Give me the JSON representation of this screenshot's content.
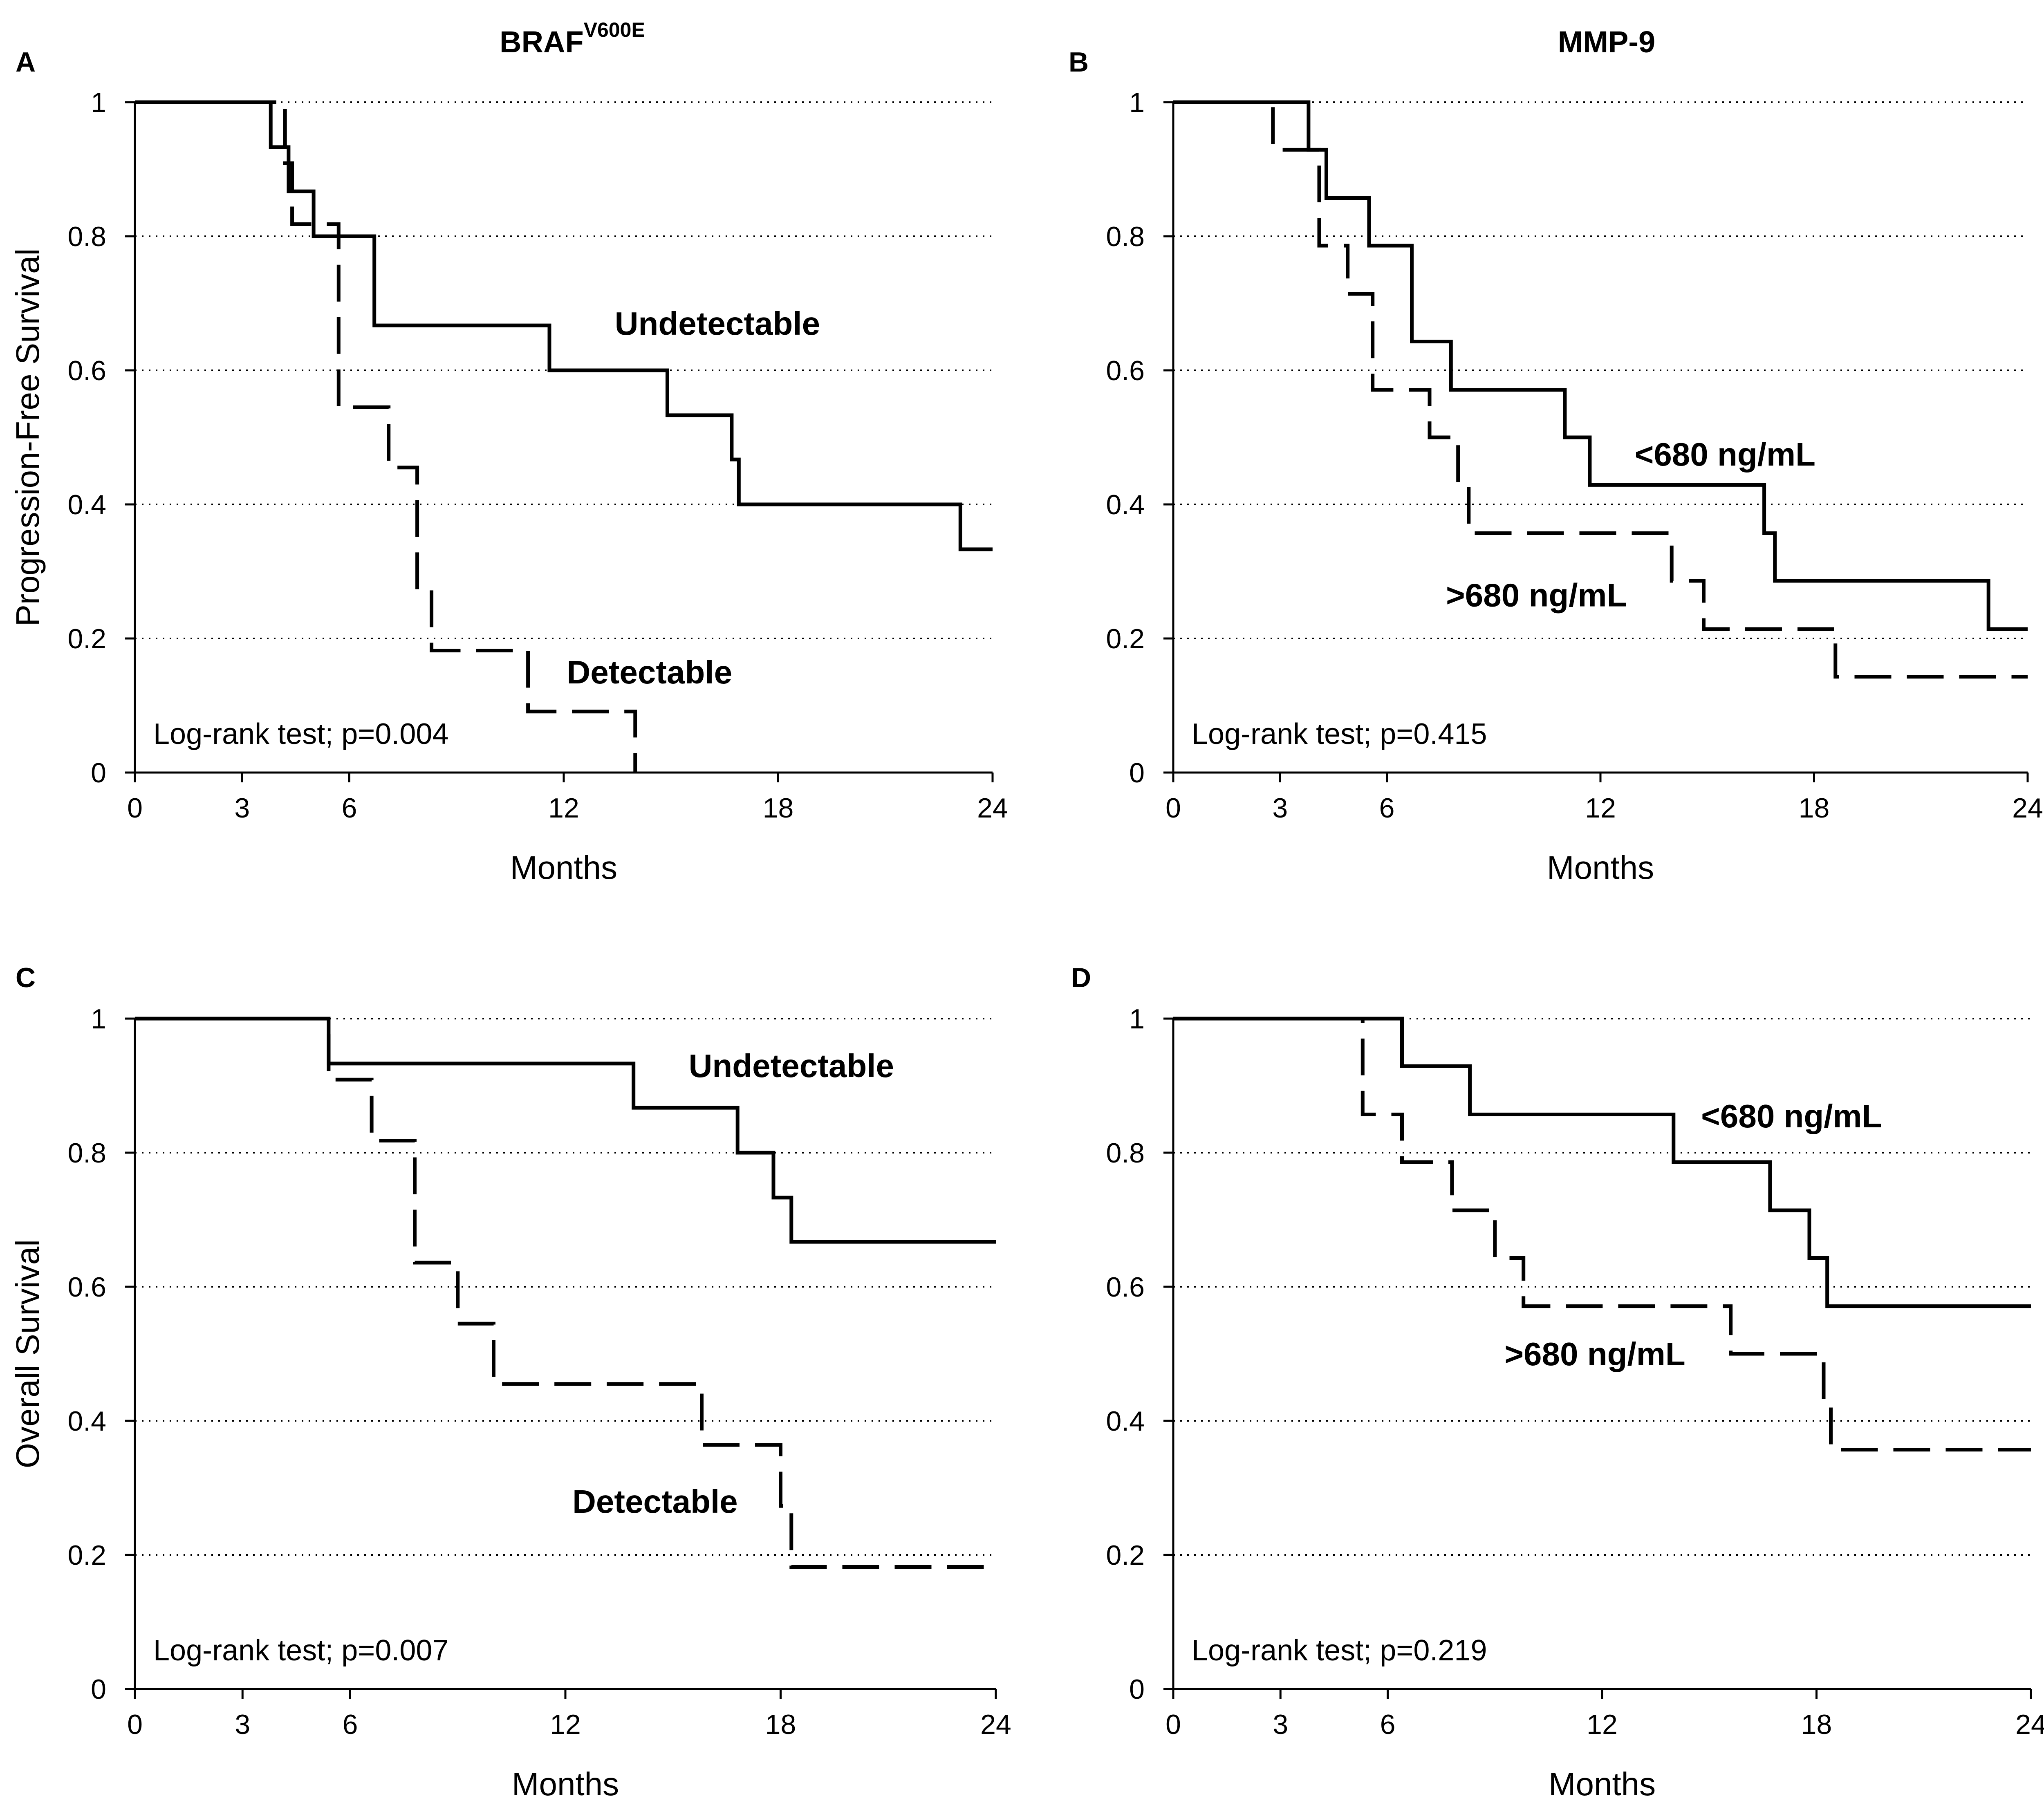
{
  "figure": {
    "colors": {
      "ink": "#000000",
      "background": "#ffffff",
      "grid": "#000000"
    },
    "shared": {
      "xlabel": "Months",
      "xticks": [
        0,
        3,
        6,
        12,
        18,
        24
      ],
      "yticks": [
        0,
        0.2,
        0.4,
        0.6,
        0.8,
        1
      ]
    }
  },
  "chart_data": [
    {
      "panel": "A",
      "type": "line",
      "step": true,
      "title": "BRAF",
      "title_sup": "V600E",
      "ylabel": "Progression-Free Survival",
      "xlabel": "Months",
      "xlim": [
        0,
        24
      ],
      "ylim": [
        0,
        1
      ],
      "grid": "dotted horizontal at y ticks",
      "annotation": "Log-rank test; p=0.004",
      "series": [
        {
          "name": "Undetectable",
          "style": "solid",
          "points": [
            [
              0,
              1
            ],
            [
              3.8,
              1
            ],
            [
              3.8,
              0.933
            ],
            [
              4.3,
              0.933
            ],
            [
              4.3,
              0.867
            ],
            [
              5,
              0.867
            ],
            [
              5,
              0.8
            ],
            [
              6.7,
              0.8
            ],
            [
              6.7,
              0.667
            ],
            [
              11.6,
              0.667
            ],
            [
              11.6,
              0.6
            ],
            [
              14.9,
              0.6
            ],
            [
              14.9,
              0.533
            ],
            [
              16.7,
              0.533
            ],
            [
              16.7,
              0.467
            ],
            [
              16.9,
              0.467
            ],
            [
              16.9,
              0.4
            ],
            [
              23.1,
              0.4
            ],
            [
              23.1,
              0.333
            ],
            [
              24,
              0.333
            ]
          ]
        },
        {
          "name": "Detectable",
          "style": "dashed",
          "points": [
            [
              0,
              1
            ],
            [
              4.2,
              1
            ],
            [
              4.2,
              0.909
            ],
            [
              4.4,
              0.909
            ],
            [
              4.4,
              0.818
            ],
            [
              5.7,
              0.818
            ],
            [
              5.7,
              0.545
            ],
            [
              7.1,
              0.545
            ],
            [
              7.1,
              0.455
            ],
            [
              7.9,
              0.455
            ],
            [
              7.9,
              0.273
            ],
            [
              8.3,
              0.273
            ],
            [
              8.3,
              0.182
            ],
            [
              11,
              0.182
            ],
            [
              11,
              0.091
            ],
            [
              14,
              0.091
            ],
            [
              14,
              0
            ]
          ]
        }
      ],
      "labels": [
        {
          "text": "Undetectable",
          "x": 16.3,
          "y": 0.67
        },
        {
          "text": "Detectable",
          "x": 14.4,
          "y": 0.15
        }
      ]
    },
    {
      "panel": "B",
      "type": "line",
      "step": true,
      "title": "MMP-9",
      "ylabel": "",
      "xlabel": "Months",
      "xlim": [
        0,
        24
      ],
      "ylim": [
        0,
        1
      ],
      "grid": "dotted horizontal at y ticks",
      "annotation": "Log-rank test; p=0.415",
      "series": [
        {
          "name": "<680 ng/mL",
          "style": "solid",
          "points": [
            [
              0,
              1
            ],
            [
              3.8,
              1
            ],
            [
              3.8,
              0.929
            ],
            [
              4.3,
              0.929
            ],
            [
              4.3,
              0.857
            ],
            [
              5.5,
              0.857
            ],
            [
              5.5,
              0.786
            ],
            [
              6.7,
              0.786
            ],
            [
              6.7,
              0.643
            ],
            [
              7.8,
              0.643
            ],
            [
              7.8,
              0.571
            ],
            [
              11,
              0.571
            ],
            [
              11,
              0.5
            ],
            [
              11.7,
              0.5
            ],
            [
              11.7,
              0.429
            ],
            [
              16.6,
              0.429
            ],
            [
              16.6,
              0.357
            ],
            [
              16.9,
              0.357
            ],
            [
              16.9,
              0.286
            ],
            [
              22.9,
              0.286
            ],
            [
              22.9,
              0.214
            ],
            [
              24,
              0.214
            ]
          ]
        },
        {
          "name": ">680 ng/mL",
          "style": "dashed",
          "points": [
            [
              0,
              1
            ],
            [
              2.8,
              1
            ],
            [
              2.8,
              0.929
            ],
            [
              4.1,
              0.929
            ],
            [
              4.1,
              0.786
            ],
            [
              4.9,
              0.786
            ],
            [
              4.9,
              0.714
            ],
            [
              5.6,
              0.714
            ],
            [
              5.6,
              0.571
            ],
            [
              7.2,
              0.571
            ],
            [
              7.2,
              0.5
            ],
            [
              8,
              0.5
            ],
            [
              8,
              0.429
            ],
            [
              8.3,
              0.429
            ],
            [
              8.3,
              0.357
            ],
            [
              14,
              0.357
            ],
            [
              14,
              0.286
            ],
            [
              14.9,
              0.286
            ],
            [
              14.9,
              0.214
            ],
            [
              18.6,
              0.214
            ],
            [
              18.6,
              0.143
            ],
            [
              24,
              0.143
            ]
          ]
        }
      ],
      "labels": [
        {
          "text": "<680 ng/mL",
          "x": 15.5,
          "y": 0.475
        },
        {
          "text": ">680 ng/mL",
          "x": 10.2,
          "y": 0.265
        }
      ]
    },
    {
      "panel": "C",
      "type": "line",
      "step": true,
      "title": "",
      "ylabel": "Overall Survival",
      "xlabel": "Months",
      "xlim": [
        0,
        24
      ],
      "ylim": [
        0,
        1
      ],
      "grid": "dotted horizontal at y ticks",
      "annotation": "Log-rank test; p=0.007",
      "series": [
        {
          "name": "Undetectable",
          "style": "solid",
          "points": [
            [
              0,
              1
            ],
            [
              5.4,
              1
            ],
            [
              5.4,
              0.933
            ],
            [
              13.9,
              0.933
            ],
            [
              13.9,
              0.867
            ],
            [
              16.8,
              0.867
            ],
            [
              16.8,
              0.8
            ],
            [
              17.8,
              0.8
            ],
            [
              17.8,
              0.733
            ],
            [
              18.3,
              0.733
            ],
            [
              18.3,
              0.667
            ],
            [
              24,
              0.667
            ]
          ]
        },
        {
          "name": "Detectable",
          "style": "dashed",
          "points": [
            [
              0,
              1
            ],
            [
              5.4,
              1
            ],
            [
              5.4,
              0.909
            ],
            [
              6.6,
              0.909
            ],
            [
              6.6,
              0.818
            ],
            [
              7.8,
              0.818
            ],
            [
              7.8,
              0.636
            ],
            [
              9,
              0.636
            ],
            [
              9,
              0.545
            ],
            [
              10,
              0.545
            ],
            [
              10,
              0.455
            ],
            [
              15.8,
              0.455
            ],
            [
              15.8,
              0.364
            ],
            [
              18,
              0.364
            ],
            [
              18,
              0.273
            ],
            [
              18.3,
              0.273
            ],
            [
              18.3,
              0.182
            ],
            [
              24,
              0.182
            ]
          ]
        }
      ],
      "labels": [
        {
          "text": "Undetectable",
          "x": 18.3,
          "y": 0.93
        },
        {
          "text": "Detectable",
          "x": 14.5,
          "y": 0.28
        }
      ]
    },
    {
      "panel": "D",
      "type": "line",
      "step": true,
      "title": "",
      "ylabel": "",
      "xlabel": "Months",
      "xlim": [
        0,
        24
      ],
      "ylim": [
        0,
        1
      ],
      "grid": "dotted horizontal at y ticks",
      "annotation": "Log-rank test; p=0.219",
      "series": [
        {
          "name": "<680 ng/mL",
          "style": "solid",
          "points": [
            [
              0,
              1
            ],
            [
              6.4,
              1
            ],
            [
              6.4,
              0.929
            ],
            [
              8.3,
              0.929
            ],
            [
              8.3,
              0.857
            ],
            [
              14,
              0.857
            ],
            [
              14,
              0.786
            ],
            [
              16.7,
              0.786
            ],
            [
              16.7,
              0.714
            ],
            [
              17.8,
              0.714
            ],
            [
              17.8,
              0.643
            ],
            [
              18.3,
              0.643
            ],
            [
              18.3,
              0.571
            ],
            [
              24,
              0.571
            ]
          ]
        },
        {
          "name": ">680 ng/mL",
          "style": "dashed",
          "points": [
            [
              0,
              1
            ],
            [
              5.3,
              1
            ],
            [
              5.3,
              0.857
            ],
            [
              6.4,
              0.857
            ],
            [
              6.4,
              0.786
            ],
            [
              7.8,
              0.786
            ],
            [
              7.8,
              0.714
            ],
            [
              9,
              0.714
            ],
            [
              9,
              0.643
            ],
            [
              9.8,
              0.643
            ],
            [
              9.8,
              0.571
            ],
            [
              15.6,
              0.571
            ],
            [
              15.6,
              0.5
            ],
            [
              18.2,
              0.5
            ],
            [
              18.2,
              0.429
            ],
            [
              18.4,
              0.429
            ],
            [
              18.4,
              0.357
            ],
            [
              24,
              0.357
            ]
          ]
        }
      ],
      "labels": [
        {
          "text": "<680 ng/mL",
          "x": 17.3,
          "y": 0.855
        },
        {
          "text": ">680 ng/mL",
          "x": 11.8,
          "y": 0.5
        }
      ]
    }
  ]
}
